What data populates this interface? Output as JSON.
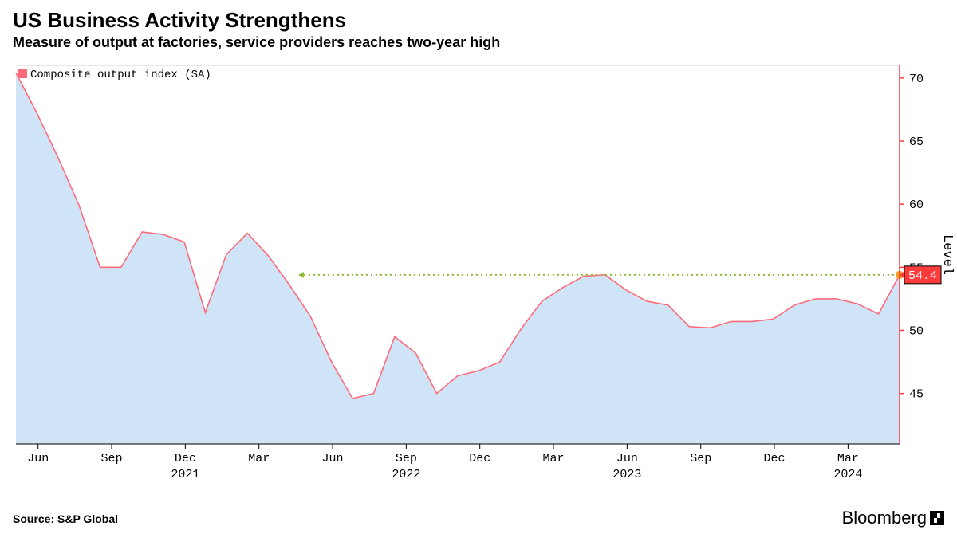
{
  "title": "US Business Activity Strengthens",
  "subtitle": "Measure of output at factories, service providers reaches two-year high",
  "source": "Source: S&P Global",
  "brand": "Bloomberg",
  "legend": {
    "label": "Composite output index (SA)"
  },
  "chart": {
    "type": "area",
    "y_axis": {
      "title": "Level",
      "ticks": [
        45,
        50,
        55,
        60,
        65,
        70
      ],
      "lim": [
        41,
        71
      ],
      "color": "#ff3b3b",
      "tick_color": "#ff3b3b",
      "label_color": "#000000"
    },
    "x_axis": {
      "months": [
        "Jun",
        "Sep",
        "Dec",
        "Mar",
        "Jun",
        "Sep",
        "Dec",
        "Mar",
        "Jun",
        "Sep",
        "Dec",
        "Mar"
      ],
      "years": [
        {
          "label": "2021",
          "at_index": 2
        },
        {
          "label": "2022",
          "at_index": 5
        },
        {
          "label": "2023",
          "at_index": 8
        },
        {
          "label": "2024",
          "at_index": 11
        }
      ],
      "baseline_color": "#000000"
    },
    "series": {
      "line_color": "#ff6b7a",
      "line_width": 1.6,
      "fill_color": "#cfe4f7",
      "fill_opacity": 1,
      "values": [
        70.4,
        67.2,
        63.7,
        59.9,
        55.0,
        55.0,
        57.8,
        57.6,
        57.0,
        51.4,
        56.0,
        57.7,
        55.9,
        53.6,
        51.1,
        47.5,
        44.6,
        45.0,
        49.5,
        48.2,
        45.0,
        46.4,
        46.8,
        47.5,
        50.1,
        52.3,
        53.4,
        54.3,
        54.4,
        53.2,
        52.3,
        52.0,
        50.3,
        50.2,
        50.7,
        50.7,
        50.9,
        52.0,
        52.5,
        52.5,
        52.1,
        51.3,
        54.4
      ]
    },
    "highlight": {
      "value": 54.4,
      "label": "54.4",
      "dot_color": "#f0a020",
      "ref_line_color": "#8bbf2e",
      "ref_from_index": 13,
      "callout_bg": "#ff3b3b"
    },
    "grid_top_color": "#d0d0d0",
    "background_color": "#ffffff"
  }
}
